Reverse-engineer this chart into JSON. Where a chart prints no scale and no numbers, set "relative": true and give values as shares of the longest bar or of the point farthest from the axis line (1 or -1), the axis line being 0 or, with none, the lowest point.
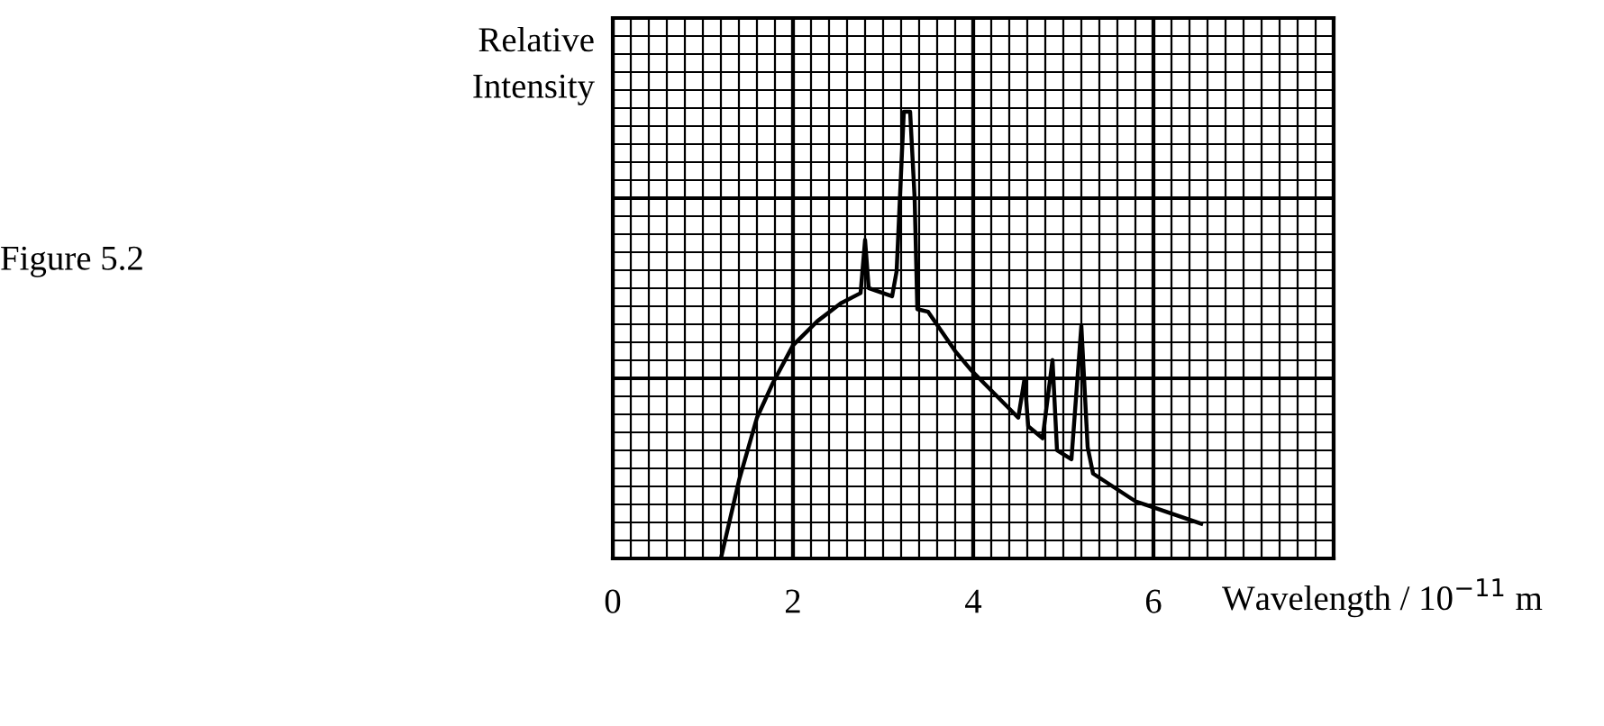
{
  "chart_data": {
    "type": "line",
    "title": "Figure 5.2",
    "xlabel": "Wavelength / 10$^{−11}$ m",
    "ylabel": "Relative\nIntensity",
    "relative": true,
    "xlim": [
      0,
      8
    ],
    "xticks": [
      0,
      2,
      4,
      6
    ],
    "tick_labels": "x",
    "grid": true,
    "marker": "none",
    "line_style": "solid",
    "series": [
      {
        "color": "#000000",
        "x": [
          1.2,
          1.4,
          1.6,
          1.77,
          2.0,
          2.27,
          2.53,
          2.75,
          2.8,
          2.84,
          3.1,
          3.15,
          3.23,
          3.3,
          3.35,
          3.38,
          3.5,
          3.8,
          3.97,
          4.5,
          4.57,
          4.61,
          4.77,
          4.88,
          4.93,
          5.09,
          5.2,
          5.27,
          5.33,
          5.8,
          6.53
        ],
        "values": [
          0,
          0.174,
          0.315,
          0.39,
          0.477,
          0.531,
          0.571,
          0.594,
          0.713,
          0.605,
          0.587,
          0.643,
          1.0,
          1.0,
          0.806,
          0.558,
          0.552,
          0.464,
          0.423,
          0.315,
          0.403,
          0.296,
          0.269,
          0.444,
          0.242,
          0.222,
          0.521,
          0.249,
          0.19,
          0.128,
          0.078
        ]
      }
    ]
  }
}
